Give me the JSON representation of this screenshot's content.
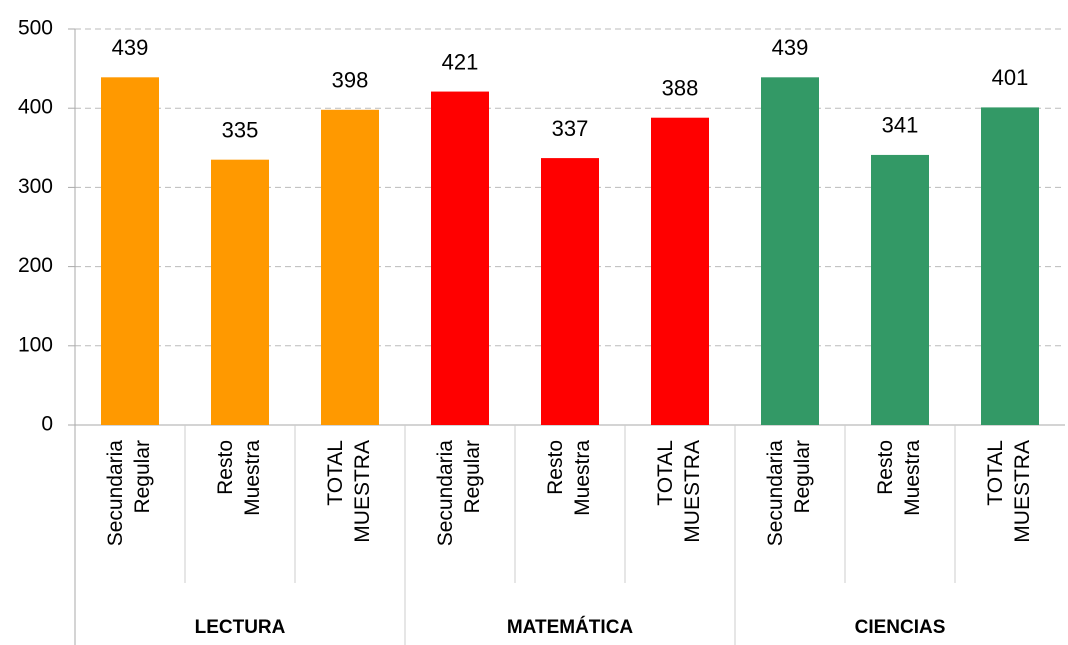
{
  "chart_data": {
    "type": "bar",
    "groups": [
      {
        "name": "LECTURA",
        "color": "#ff9900",
        "categories": [
          [
            "Secundaria",
            "Regular"
          ],
          [
            "Resto",
            "Muestra"
          ],
          [
            "TOTAL",
            "MUESTRA"
          ]
        ],
        "values": [
          439,
          335,
          398
        ]
      },
      {
        "name": "MATEMÁTICA",
        "color": "#ff0000",
        "categories": [
          [
            "Secundaria",
            "Regular"
          ],
          [
            "Resto",
            "Muestra"
          ],
          [
            "TOTAL",
            "MUESTRA"
          ]
        ],
        "values": [
          421,
          337,
          388
        ]
      },
      {
        "name": "CIENCIAS",
        "color": "#339966",
        "categories": [
          [
            "Secundaria",
            "Regular"
          ],
          [
            "Resto",
            "Muestra"
          ],
          [
            "TOTAL",
            "MUESTRA"
          ]
        ],
        "values": [
          439,
          341,
          401
        ]
      }
    ],
    "ylim": [
      0,
      500
    ],
    "yticks": [
      0,
      100,
      200,
      300,
      400,
      500
    ],
    "grid": true
  }
}
